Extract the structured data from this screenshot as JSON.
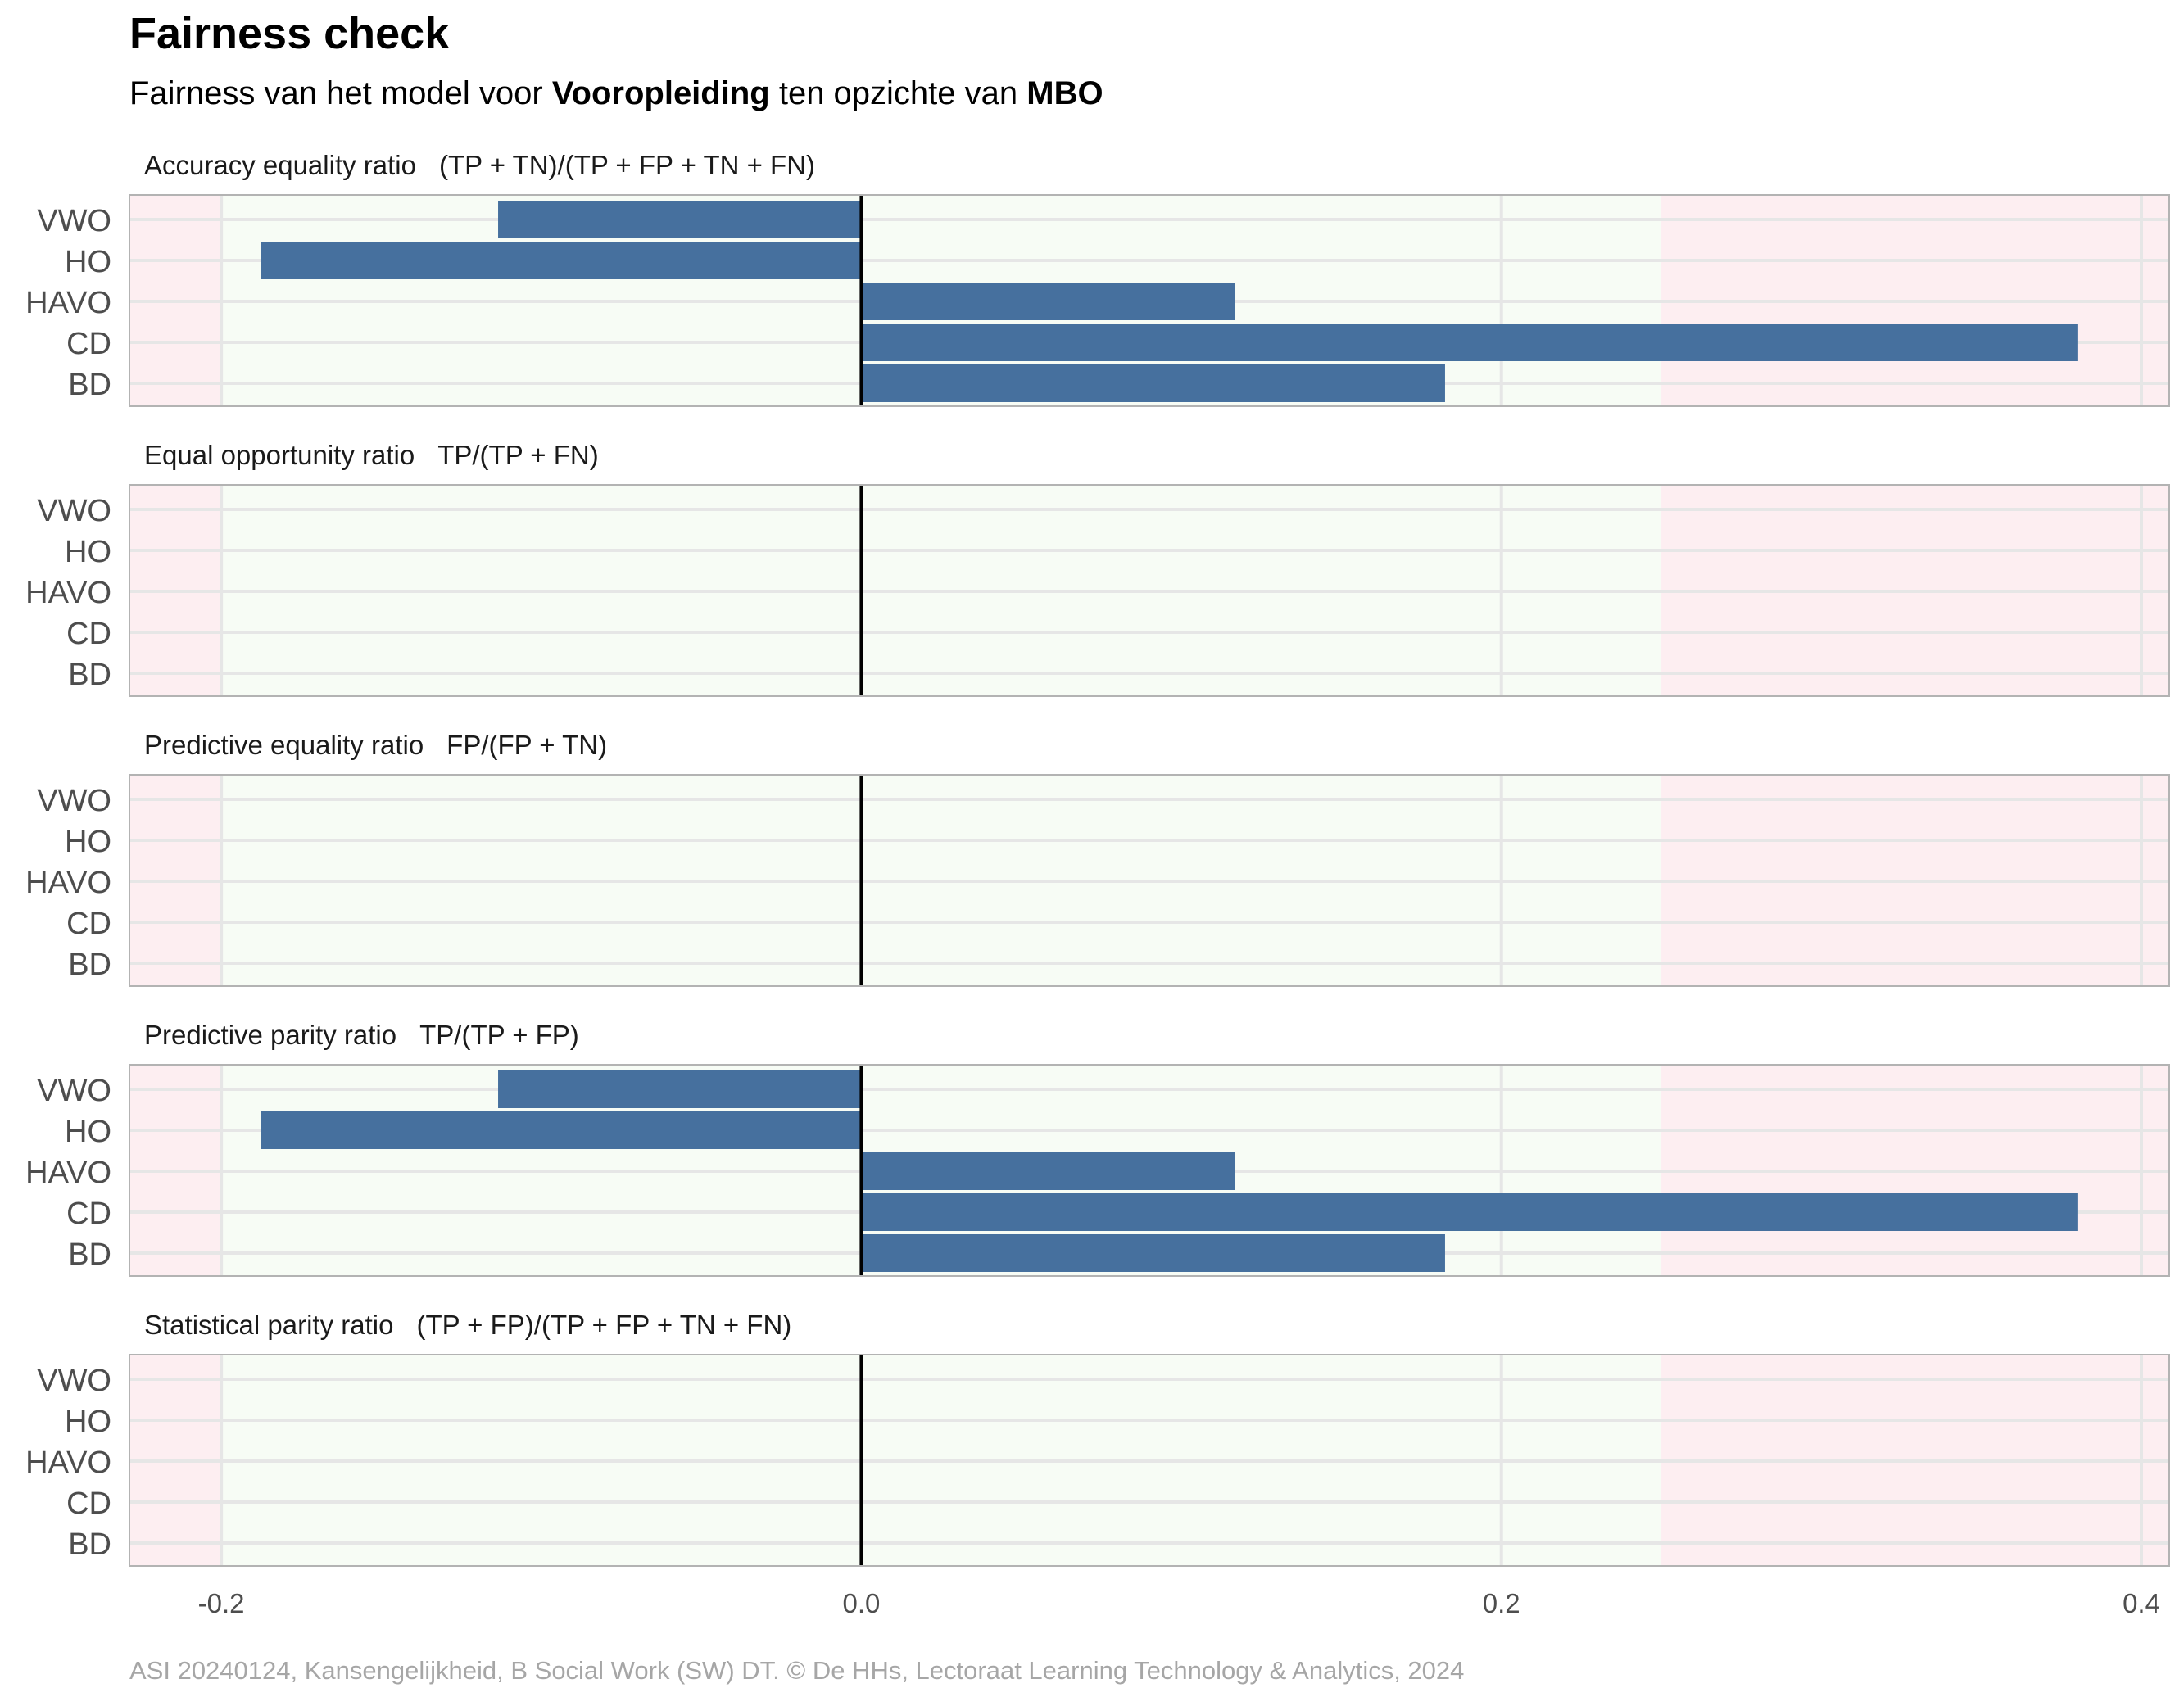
{
  "title": "Fairness check",
  "subtitle": {
    "prefix": "Fairness van het model voor ",
    "variable": "Vooropleiding",
    "middle": " ten opzichte van ",
    "reference": "MBO"
  },
  "caption": "ASI 20240124, Kansengelijkheid, B Social Work (SW) DT. © De HHs, Lectoraat Learning Technology & Analytics, 2024",
  "colors": {
    "bar": "#46709e",
    "green_zone": "#f7fcf5",
    "red_zone": "#fdeef1",
    "grid": "#e6e6e6",
    "panel_border": "#b3b3b3",
    "zero_line": "#000000"
  },
  "chart_data": {
    "type": "bar",
    "orientation": "horizontal",
    "categories": [
      "VWO",
      "HO",
      "HAVO",
      "CD",
      "BD"
    ],
    "xlim": [
      -0.2287,
      0.4087
    ],
    "x_ticks": [
      -0.2,
      0.0,
      0.2,
      0.4
    ],
    "x_tick_labels": [
      "-0.2",
      "0.0",
      "0.2",
      "0.4"
    ],
    "fair_range": [
      -0.2,
      0.25
    ],
    "grid": true,
    "facets": [
      {
        "label": "Accuracy equality ratio",
        "formula": "(TP + TN)/(TP + FP + TN + FN)",
        "values": {
          "VWO": -0.1135,
          "HO": -0.1875,
          "HAVO": 0.1167,
          "CD": 0.38,
          "BD": 0.1824
        }
      },
      {
        "label": "Equal opportunity ratio",
        "formula": "TP/(TP + FN)",
        "values": {}
      },
      {
        "label": "Predictive equality ratio",
        "formula": "FP/(FP + TN)",
        "values": {}
      },
      {
        "label": "Predictive parity ratio",
        "formula": "TP/(TP + FP)",
        "values": {
          "VWO": -0.1135,
          "HO": -0.1875,
          "HAVO": 0.1167,
          "CD": 0.38,
          "BD": 0.1824
        }
      },
      {
        "label": "Statistical parity ratio",
        "formula": "(TP + FP)/(TP + FP + TN + FN)",
        "values": {}
      }
    ]
  }
}
